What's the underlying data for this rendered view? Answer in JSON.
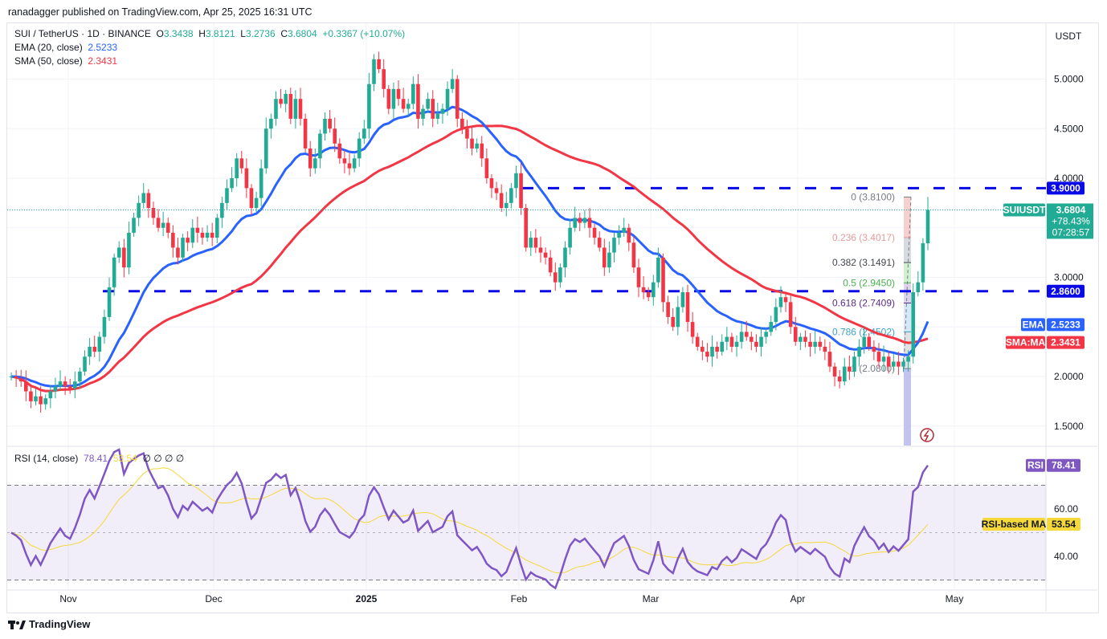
{
  "header": {
    "published": "ranadagger published on TradingView.com, Apr 25, 2025 16:31 UTC"
  },
  "legend": {
    "symbol": "SUI / TetherUS · 1D · BINANCE",
    "o_label": "O",
    "o": "3.3438",
    "h_label": "H",
    "h": "3.8121",
    "l_label": "L",
    "l": "3.2736",
    "c_label": "C",
    "c": "3.6804",
    "change": "+0.3367 (+10.07%)",
    "ema_label": "EMA (20, close)",
    "ema_value": "2.5233",
    "sma_label": "SMA (50, close)",
    "sma_value": "2.3431",
    "rsi_label": "RSI (14, close)",
    "rsi_value": "78.41",
    "rsi_ma_value": "53.54",
    "rsi_extra": "∅ ∅ ∅ ∅"
  },
  "axis": {
    "currency": "USDT"
  },
  "badges": {
    "resistance": "3.9000",
    "symbol": "SUIUSDT",
    "price": "3.6804",
    "pct": "+78.43%",
    "countdown": "07:28:57",
    "support": "2.8600",
    "ema_tag": "EMA",
    "ema": "2.5233",
    "sma_tag": "SMA:MA",
    "sma": "2.3431",
    "rsi_tag": "RSI",
    "rsi": "78.41",
    "rsi_ma_tag": "RSI-based MA",
    "rsi_ma": "53.54"
  },
  "colors": {
    "up": "#22ab94",
    "down": "#f23645",
    "ema": "#2962ff",
    "sma": "#f23645",
    "rsi": "#7e57c2",
    "rsi_ma": "#f5d83a",
    "levels": "#0a0ae6"
  },
  "fib": [
    {
      "label": "0 (3.8100)",
      "price": 3.81,
      "color": "#787b86",
      "fill": "#f4c7c7"
    },
    {
      "label": "0.236 (3.4017)",
      "price": 3.4017,
      "color": "#e89a9a",
      "fill": "#d1d4dc"
    },
    {
      "label": "0.382 (3.1491)",
      "price": 3.1491,
      "color": "#434651",
      "fill": "#c8efc8"
    },
    {
      "label": "0.5 (2.9450)",
      "price": 2.945,
      "color": "#4caf50",
      "fill": "#d9cdea"
    },
    {
      "label": "0.618 (2.7409)",
      "price": 2.7409,
      "color": "#5b2c8a",
      "fill": "#cfe3f3"
    },
    {
      "label": "0.786 (2.4502)",
      "price": 2.4502,
      "color": "#3fa0c8",
      "fill": "#dcdde1"
    },
    {
      "label": "1 (2.0800)",
      "price": 2.08,
      "color": "#787b86",
      "fill": "#b8b8f0"
    }
  ],
  "chart_data": {
    "type": "candlestick",
    "symbol": "SUI / TetherUS",
    "interval": "1D",
    "price_ticks": [
      "5.0000",
      "4.5000",
      "4.0000",
      "3.0000",
      "2.0000",
      "1.5000"
    ],
    "price_tick_values": [
      5.0,
      4.5,
      4.0,
      3.0,
      2.0,
      1.5
    ],
    "rsi_ticks": [
      "60.00",
      "40.00"
    ],
    "rsi_tick_values": [
      60,
      40
    ],
    "time_ticks": [
      "Nov",
      "Dec",
      "2025",
      "Feb",
      "Mar",
      "Apr",
      "May"
    ],
    "horizontal_levels": [
      3.9,
      2.86
    ],
    "ylim": [
      1.3,
      5.5
    ],
    "closes": [
      2.0,
      1.98,
      1.95,
      1.85,
      1.75,
      1.8,
      1.72,
      1.78,
      1.85,
      1.9,
      1.95,
      1.9,
      1.88,
      1.95,
      2.05,
      2.2,
      2.3,
      2.25,
      2.4,
      2.6,
      2.9,
      3.2,
      3.3,
      3.1,
      3.45,
      3.6,
      3.75,
      3.85,
      3.7,
      3.6,
      3.5,
      3.55,
      3.45,
      3.3,
      3.2,
      3.4,
      3.35,
      3.5,
      3.45,
      3.4,
      3.45,
      3.4,
      3.6,
      3.75,
      3.9,
      4.0,
      4.2,
      4.1,
      3.9,
      3.7,
      3.8,
      4.1,
      4.5,
      4.6,
      4.8,
      4.75,
      4.85,
      4.6,
      4.8,
      4.6,
      4.3,
      4.1,
      4.2,
      4.45,
      4.6,
      4.5,
      4.35,
      4.2,
      4.15,
      4.1,
      4.2,
      4.4,
      4.5,
      4.95,
      5.2,
      5.1,
      4.9,
      4.7,
      4.9,
      4.8,
      4.7,
      4.75,
      4.95,
      4.6,
      4.7,
      4.8,
      4.6,
      4.65,
      4.7,
      4.9,
      5.0,
      4.6,
      4.5,
      4.4,
      4.3,
      4.35,
      4.2,
      4.0,
      3.9,
      3.85,
      3.7,
      3.75,
      3.9,
      4.05,
      3.7,
      3.3,
      3.4,
      3.3,
      3.25,
      3.2,
      3.05,
      2.95,
      3.1,
      3.3,
      3.5,
      3.6,
      3.55,
      3.6,
      3.5,
      3.4,
      3.3,
      3.1,
      3.25,
      3.4,
      3.45,
      3.5,
      3.35,
      3.1,
      2.9,
      2.85,
      2.8,
      2.95,
      3.2,
      2.75,
      2.6,
      2.5,
      2.7,
      2.85,
      2.55,
      2.4,
      2.3,
      2.25,
      2.2,
      2.3,
      2.25,
      2.35,
      2.4,
      2.3,
      2.35,
      2.45,
      2.4,
      2.35,
      2.3,
      2.4,
      2.45,
      2.55,
      2.7,
      2.8,
      2.75,
      2.5,
      2.35,
      2.4,
      2.35,
      2.3,
      2.35,
      2.3,
      2.25,
      2.1,
      2.0,
      1.95,
      2.1,
      2.05,
      2.2,
      2.3,
      2.4,
      2.3,
      2.25,
      2.15,
      2.2,
      2.1,
      2.15,
      2.1,
      2.15,
      2.2,
      2.85,
      2.95,
      3.3438,
      3.6804
    ],
    "last_candle": {
      "open": 3.3438,
      "high": 3.8121,
      "low": 3.2736,
      "close": 3.6804
    },
    "indicators": [
      "EMA 20",
      "SMA 50",
      "RSI 14",
      "RSI-based MA 14"
    ]
  }
}
